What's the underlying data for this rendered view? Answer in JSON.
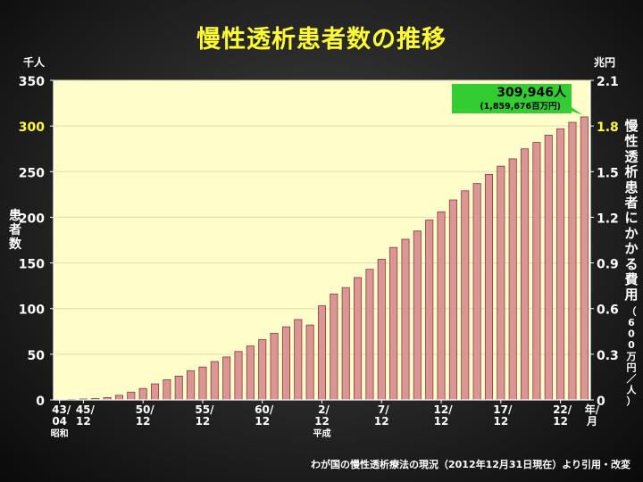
{
  "title": "慢性透析患者数の推移",
  "source": "わが国の慢性透析療法の現況（2012年12月31日現在）より引用・改変",
  "colors": {
    "plot_bg": "#ffffcc",
    "bar_fill": "#d99694",
    "bar_stroke": "#8b3a3a",
    "title": "#ffff33",
    "highlight_tick": "#ffff33",
    "callout_bg": "#33cc33"
  },
  "chart_data": {
    "type": "bar",
    "title": "慢性透析患者数の推移",
    "left_unit": "千人",
    "right_unit": "兆円",
    "ylabel": "患者数",
    "ylabel2": "慢性透析患者にかかる費用（600万円／人）",
    "xunit": "年/月",
    "ylim": [
      0,
      350
    ],
    "ylim2": [
      0,
      2.1
    ],
    "yticks": [
      "0",
      "50",
      "100",
      "150",
      "200",
      "250",
      "300",
      "350"
    ],
    "yticks2": [
      "0",
      "0.3",
      "0.6",
      "0.9",
      "1.2",
      "1.5",
      "1.8",
      "2.1"
    ],
    "highlight_ytick": "300",
    "highlight_ytick2": "1.8",
    "grid": true,
    "x_labels": [
      {
        "index": 0,
        "lines": [
          "43/",
          "04",
          "昭和"
        ]
      },
      {
        "index": 2,
        "lines": [
          "45/",
          "12"
        ]
      },
      {
        "index": 7,
        "lines": [
          "50/",
          "12"
        ]
      },
      {
        "index": 12,
        "lines": [
          "55/",
          "12"
        ]
      },
      {
        "index": 17,
        "lines": [
          "60/",
          "12"
        ]
      },
      {
        "index": 22,
        "lines": [
          "2/",
          "12",
          "平成"
        ]
      },
      {
        "index": 27,
        "lines": [
          "7/",
          "12"
        ]
      },
      {
        "index": 32,
        "lines": [
          "12/",
          "12"
        ]
      },
      {
        "index": 37,
        "lines": [
          "17/",
          "12"
        ]
      },
      {
        "index": 42,
        "lines": [
          "22/",
          "12"
        ]
      }
    ],
    "values": [
      0.2,
      0.5,
      1.0,
      1.5,
      2.5,
      5,
      8.5,
      12.5,
      17.5,
      22,
      26,
      32,
      36,
      42,
      47,
      53,
      59,
      66,
      73,
      80,
      88,
      82,
      103,
      116,
      123,
      134,
      143,
      154,
      167,
      176,
      185,
      197,
      206,
      219,
      229,
      237,
      247,
      256,
      264,
      275,
      282,
      290,
      297,
      304,
      310
    ],
    "callout": {
      "value": "309,946人",
      "sub": "(1,859,676百万円)"
    }
  }
}
